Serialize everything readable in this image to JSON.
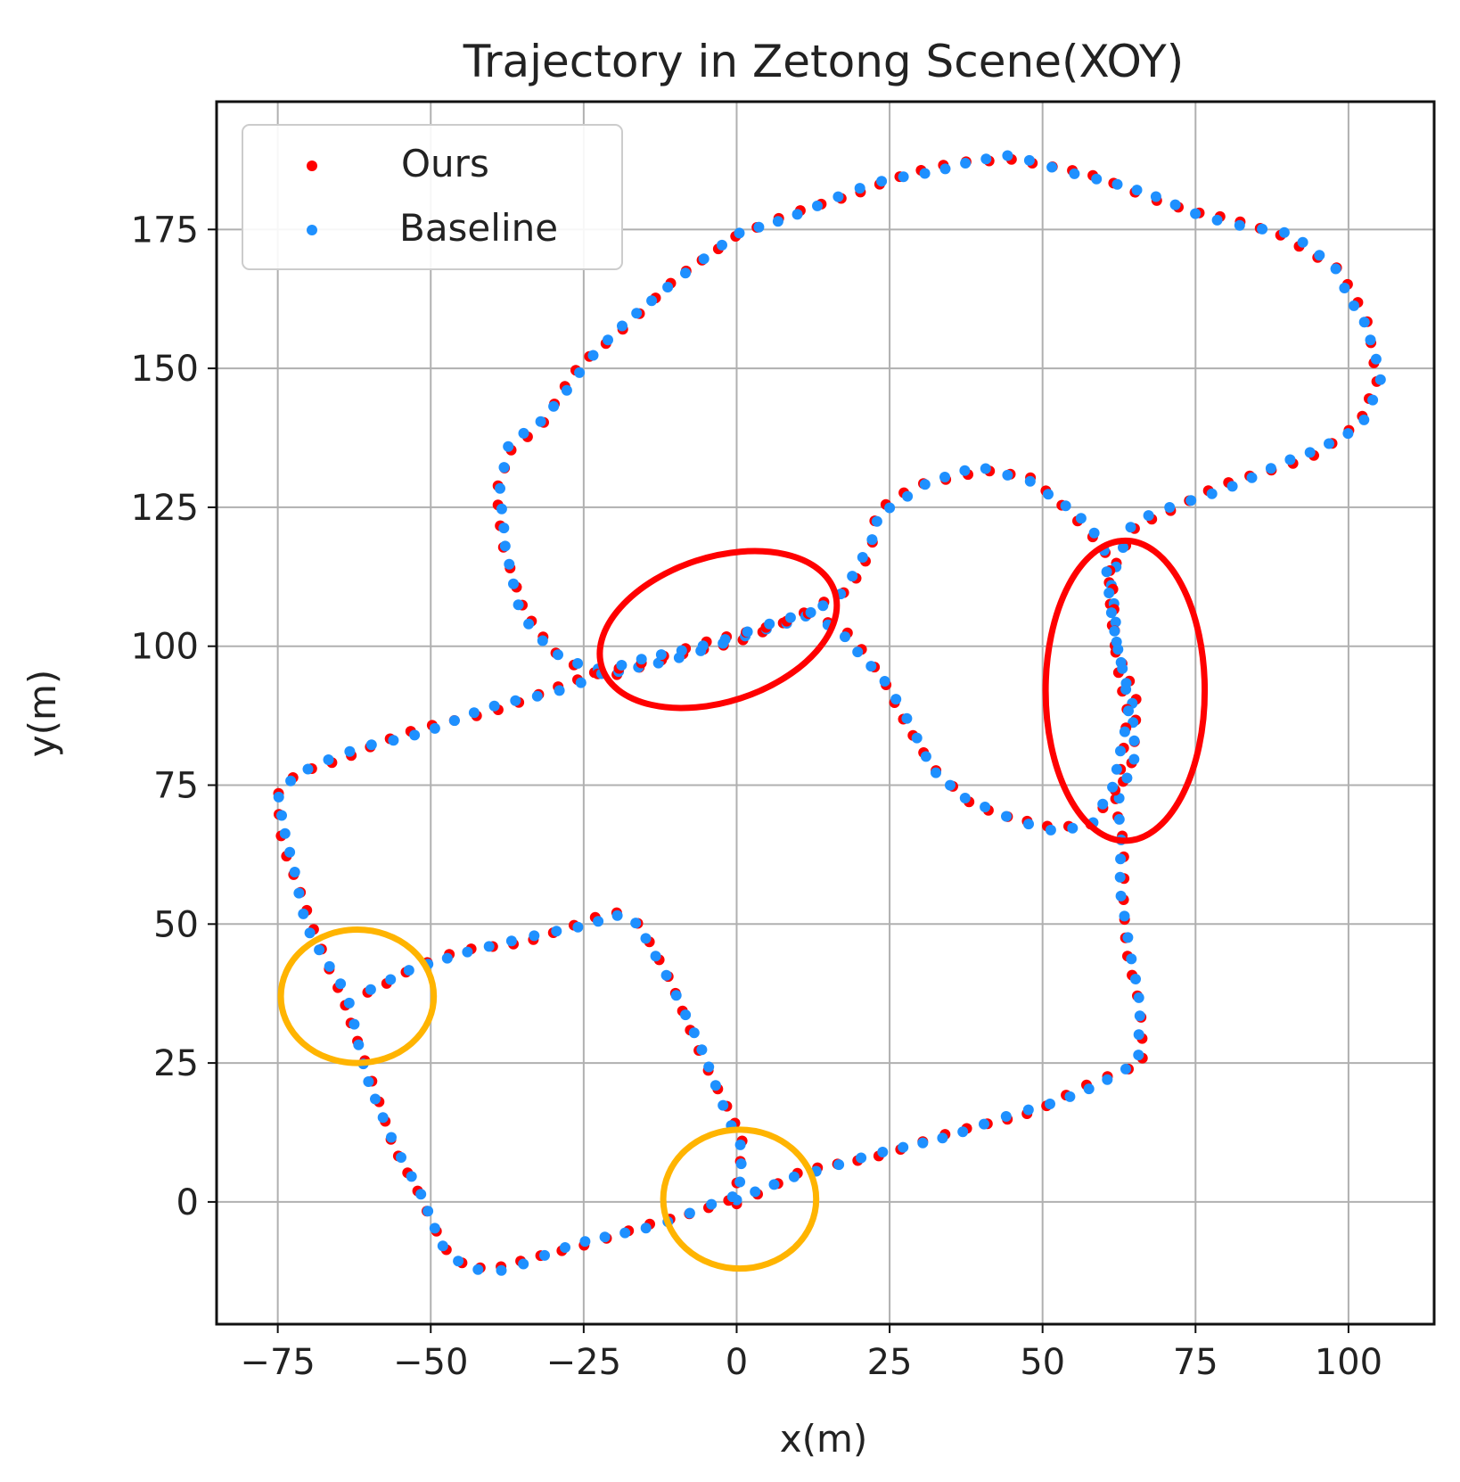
{
  "chart_data": {
    "type": "scatter",
    "title": "Trajectory in Zetong Scene(XOY)",
    "xlabel": "x(m)",
    "ylabel": "y(m)",
    "xlim": [
      -85,
      114
    ],
    "ylim": [
      -22,
      198
    ],
    "xticks": [
      -75,
      -50,
      -25,
      0,
      25,
      50,
      75,
      100
    ],
    "xtick_labels": [
      "−75",
      "−50",
      "−25",
      "0",
      "25",
      "50",
      "75",
      "100"
    ],
    "yticks": [
      0,
      25,
      50,
      75,
      100,
      125,
      150,
      175
    ],
    "ytick_labels": [
      "0",
      "25",
      "50",
      "75",
      "100",
      "125",
      "150",
      "175"
    ],
    "grid": true,
    "legend_position": "top-left",
    "series": [
      {
        "name": "Ours",
        "color": "#ff0000"
      },
      {
        "name": "Baseline",
        "color": "#1e90ff"
      }
    ],
    "path_waypoints": [
      [
        0,
        0
      ],
      [
        10,
        5
      ],
      [
        25,
        9
      ],
      [
        50,
        17
      ],
      [
        60,
        22
      ],
      [
        66,
        25
      ],
      [
        66,
        35
      ],
      [
        64,
        45
      ],
      [
        63,
        55
      ],
      [
        63,
        65
      ],
      [
        62,
        72
      ],
      [
        65,
        80
      ],
      [
        65,
        90
      ],
      [
        62,
        100
      ],
      [
        61,
        112
      ],
      [
        65,
        122
      ],
      [
        78,
        128
      ],
      [
        95,
        135
      ],
      [
        102,
        140
      ],
      [
        105,
        148
      ],
      [
        103,
        158
      ],
      [
        98,
        168
      ],
      [
        90,
        174
      ],
      [
        75,
        178
      ],
      [
        60,
        184
      ],
      [
        45,
        188
      ],
      [
        37,
        187
      ],
      [
        25,
        184
      ],
      [
        10,
        178
      ],
      [
        0,
        174
      ],
      [
        -10,
        166
      ],
      [
        -20,
        156
      ],
      [
        -25,
        151
      ],
      [
        -32,
        140
      ],
      [
        -37,
        136
      ],
      [
        -39,
        128
      ],
      [
        -38,
        118
      ],
      [
        -35,
        106
      ],
      [
        -30,
        99
      ],
      [
        -25,
        96
      ],
      [
        -20,
        95
      ],
      [
        -10,
        98
      ],
      [
        0,
        101
      ],
      [
        10,
        105
      ],
      [
        18,
        110
      ],
      [
        22,
        118
      ],
      [
        23,
        124
      ],
      [
        30,
        129
      ],
      [
        40,
        132
      ],
      [
        48,
        130
      ],
      [
        55,
        124
      ],
      [
        60,
        118
      ],
      [
        61,
        112
      ],
      [
        62,
        100
      ],
      [
        64,
        88
      ],
      [
        62,
        75
      ],
      [
        58,
        68
      ],
      [
        52,
        67
      ],
      [
        45,
        69
      ],
      [
        38,
        72
      ],
      [
        32,
        78
      ],
      [
        28,
        86
      ],
      [
        24,
        94
      ],
      [
        18,
        102
      ],
      [
        12,
        106
      ],
      [
        0,
        102
      ],
      [
        -10,
        99
      ],
      [
        -20,
        96
      ],
      [
        -30,
        92
      ],
      [
        -45,
        87
      ],
      [
        -60,
        82
      ],
      [
        -72,
        77
      ],
      [
        -75,
        73
      ],
      [
        -74,
        65
      ],
      [
        -72,
        58
      ],
      [
        -70,
        50
      ],
      [
        -67,
        43
      ],
      [
        -64,
        37
      ],
      [
        -62,
        29
      ],
      [
        -60,
        22
      ],
      [
        -56,
        10
      ],
      [
        -52,
        2
      ],
      [
        -48,
        -8
      ],
      [
        -44,
        -12
      ],
      [
        -38,
        -12
      ],
      [
        -30,
        -9
      ],
      [
        -20,
        -6
      ],
      [
        -10,
        -3
      ],
      [
        -5,
        -1
      ],
      [
        0,
        1
      ],
      [
        1,
        10
      ],
      [
        -3,
        20
      ],
      [
        -7,
        30
      ],
      [
        -11,
        40
      ],
      [
        -16,
        50
      ],
      [
        -20,
        52
      ],
      [
        -25,
        50
      ],
      [
        -35,
        47
      ],
      [
        -45,
        45
      ],
      [
        -53,
        42
      ],
      [
        -58,
        39
      ],
      [
        -62,
        37
      ]
    ],
    "annotations": [
      {
        "shape": "ellipse",
        "color": "#ff0000",
        "center": [
          -3,
          103
        ],
        "radii_data": [
          20,
          13
        ],
        "rotation_deg": -18
      },
      {
        "shape": "ellipse",
        "color": "#ff0000",
        "center": [
          63.5,
          92
        ],
        "radii_data": [
          13,
          27
        ],
        "rotation_deg": 0
      },
      {
        "shape": "ellipse",
        "color": "#ffb400",
        "center": [
          -62,
          37
        ],
        "radii_data": [
          12.5,
          12
        ],
        "rotation_deg": 0
      },
      {
        "shape": "ellipse",
        "color": "#ffb400",
        "center": [
          0.5,
          0.5
        ],
        "radii_data": [
          12.5,
          12.5
        ],
        "rotation_deg": 0
      }
    ]
  }
}
